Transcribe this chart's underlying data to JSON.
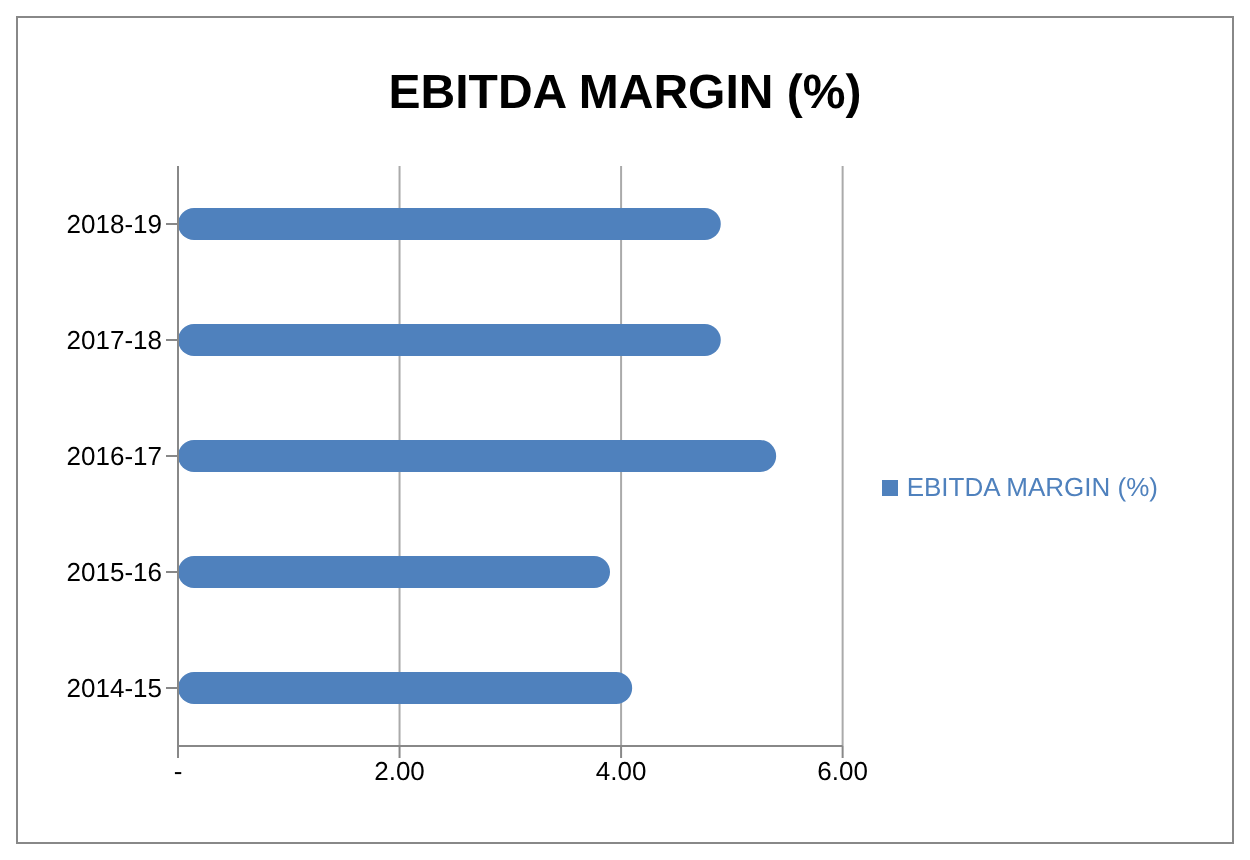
{
  "chart_data": {
    "type": "bar",
    "orientation": "horizontal",
    "title": "EBITDA MARGIN (%)",
    "categories": [
      "2018-19",
      "2017-18",
      "2016-17",
      "2015-16",
      "2014-15"
    ],
    "series": [
      {
        "name": "EBITDA MARGIN (%)",
        "color": "#4f81bd",
        "values": [
          4.9,
          4.9,
          5.4,
          3.9,
          4.1
        ]
      }
    ],
    "xlim": [
      0,
      6
    ],
    "xticks": [
      {
        "value": 0,
        "label": "-"
      },
      {
        "value": 2,
        "label": "2.00"
      },
      {
        "value": 4,
        "label": "4.00"
      },
      {
        "value": 6,
        "label": "6.00"
      }
    ],
    "grid": "x",
    "legend": "right"
  }
}
